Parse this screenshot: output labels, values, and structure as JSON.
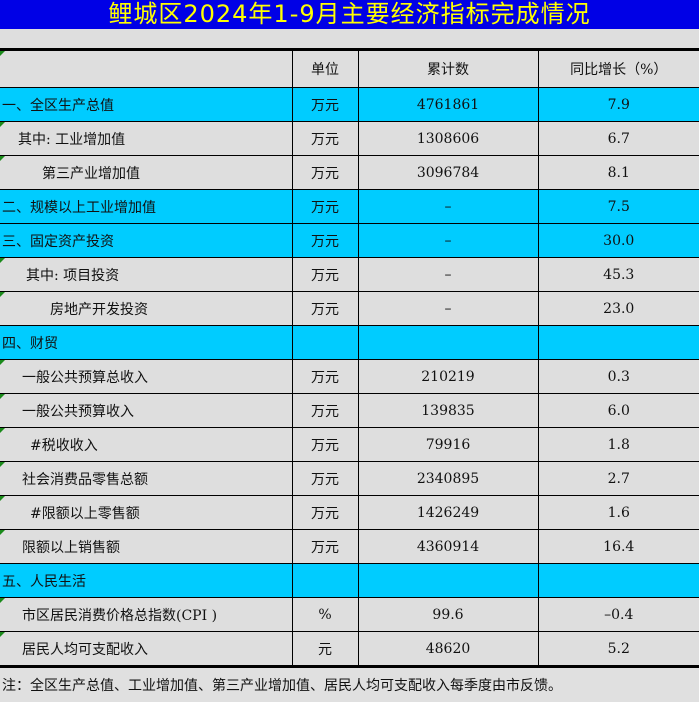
{
  "title": "鲤城区2024年1-9月主要经济指标完成情况",
  "headers": [
    "",
    "单位",
    "累计数",
    "同比增长（%）"
  ],
  "rows": [
    {
      "name": "一、全区生产总值",
      "unit": "万元",
      "total": "4761861",
      "growth": "7.9",
      "hl": true,
      "indent": 2
    },
    {
      "name": "其中: 工业增加值",
      "unit": "万元",
      "total": "1308606",
      "growth": "6.7",
      "hl": false,
      "indent": 18
    },
    {
      "name": "第三产业增加值",
      "unit": "万元",
      "total": "3096784",
      "growth": "8.1",
      "hl": false,
      "indent": 42
    },
    {
      "name": "二、规模以上工业增加值",
      "unit": "万元",
      "total": "–",
      "growth": "7.5",
      "hl": true,
      "indent": 2
    },
    {
      "name": "三、固定资产投资",
      "unit": "万元",
      "total": "–",
      "growth": "30.0",
      "hl": true,
      "indent": 2
    },
    {
      "name": "其中: 项目投资",
      "unit": "万元",
      "total": "–",
      "growth": "45.3",
      "hl": false,
      "indent": 26
    },
    {
      "name": "房地产开发投资",
      "unit": "万元",
      "total": "–",
      "growth": "23.0",
      "hl": false,
      "indent": 50
    },
    {
      "name": "四、财贸",
      "unit": "",
      "total": "",
      "growth": "",
      "hl": true,
      "indent": 2
    },
    {
      "name": "一般公共预算总收入",
      "unit": "万元",
      "total": "210219",
      "growth": "0.3",
      "hl": false,
      "indent": 22
    },
    {
      "name": "一般公共预算收入",
      "unit": "万元",
      "total": "139835",
      "growth": "6.0",
      "hl": false,
      "indent": 22
    },
    {
      "name": "#税收收入",
      "unit": "万元",
      "total": "79916",
      "growth": "1.8",
      "hl": false,
      "indent": 30
    },
    {
      "name": "社会消费品零售总额",
      "unit": "万元",
      "total": "2340895",
      "growth": "2.7",
      "hl": false,
      "indent": 22
    },
    {
      "name": "#限额以上零售额",
      "unit": "万元",
      "total": "1426249",
      "growth": "1.6",
      "hl": false,
      "indent": 30
    },
    {
      "name": "限额以上销售额",
      "unit": "万元",
      "total": "4360914",
      "growth": "16.4",
      "hl": false,
      "indent": 22
    },
    {
      "name": "五、人民生活",
      "unit": "",
      "total": "",
      "growth": "",
      "hl": true,
      "indent": 2
    },
    {
      "name": "市区居民消费价格总指数(CPI )",
      "unit": "%",
      "total": "99.6",
      "growth": "–0.4",
      "hl": false,
      "indent": 22
    },
    {
      "name": "居民人均可支配收入",
      "unit": "元",
      "total": "48620",
      "growth": "5.2",
      "hl": false,
      "indent": 22
    }
  ],
  "note": "注：全区生产总值、工业增加值、第三产业增加值、居民人均可支配收入每季度由市反馈。"
}
